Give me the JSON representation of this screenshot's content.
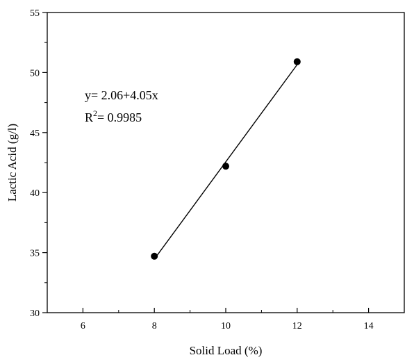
{
  "chart_data": {
    "type": "scatter",
    "xlabel": "Solid Load (%)",
    "ylabel": "Lactic Acid (g/l)",
    "xlim": [
      5,
      15
    ],
    "ylim": [
      30,
      55
    ],
    "x_ticks": [
      6,
      8,
      10,
      12,
      14
    ],
    "y_ticks": [
      30,
      35,
      40,
      45,
      50,
      55
    ],
    "x_tick_labels": [
      "6",
      "8",
      "10",
      "12",
      "14"
    ],
    "y_tick_labels": [
      "30",
      "35",
      "40",
      "45",
      "50",
      "55"
    ],
    "grid": false,
    "legend": "none",
    "series": [
      {
        "x": [
          8,
          10,
          12
        ],
        "y": [
          34.7,
          42.2,
          50.9
        ],
        "marker": "filled-circle",
        "color": "#000000"
      }
    ],
    "fit_line": {
      "intercept": 2.06,
      "slope": 4.05,
      "x_range": [
        8,
        12
      ],
      "color": "#000000"
    },
    "annotations": {
      "equation": "y= 2.06+4.05x",
      "r2_prefix": "R",
      "r2_superscript": "2",
      "r2_value": "= 0.9985"
    }
  }
}
